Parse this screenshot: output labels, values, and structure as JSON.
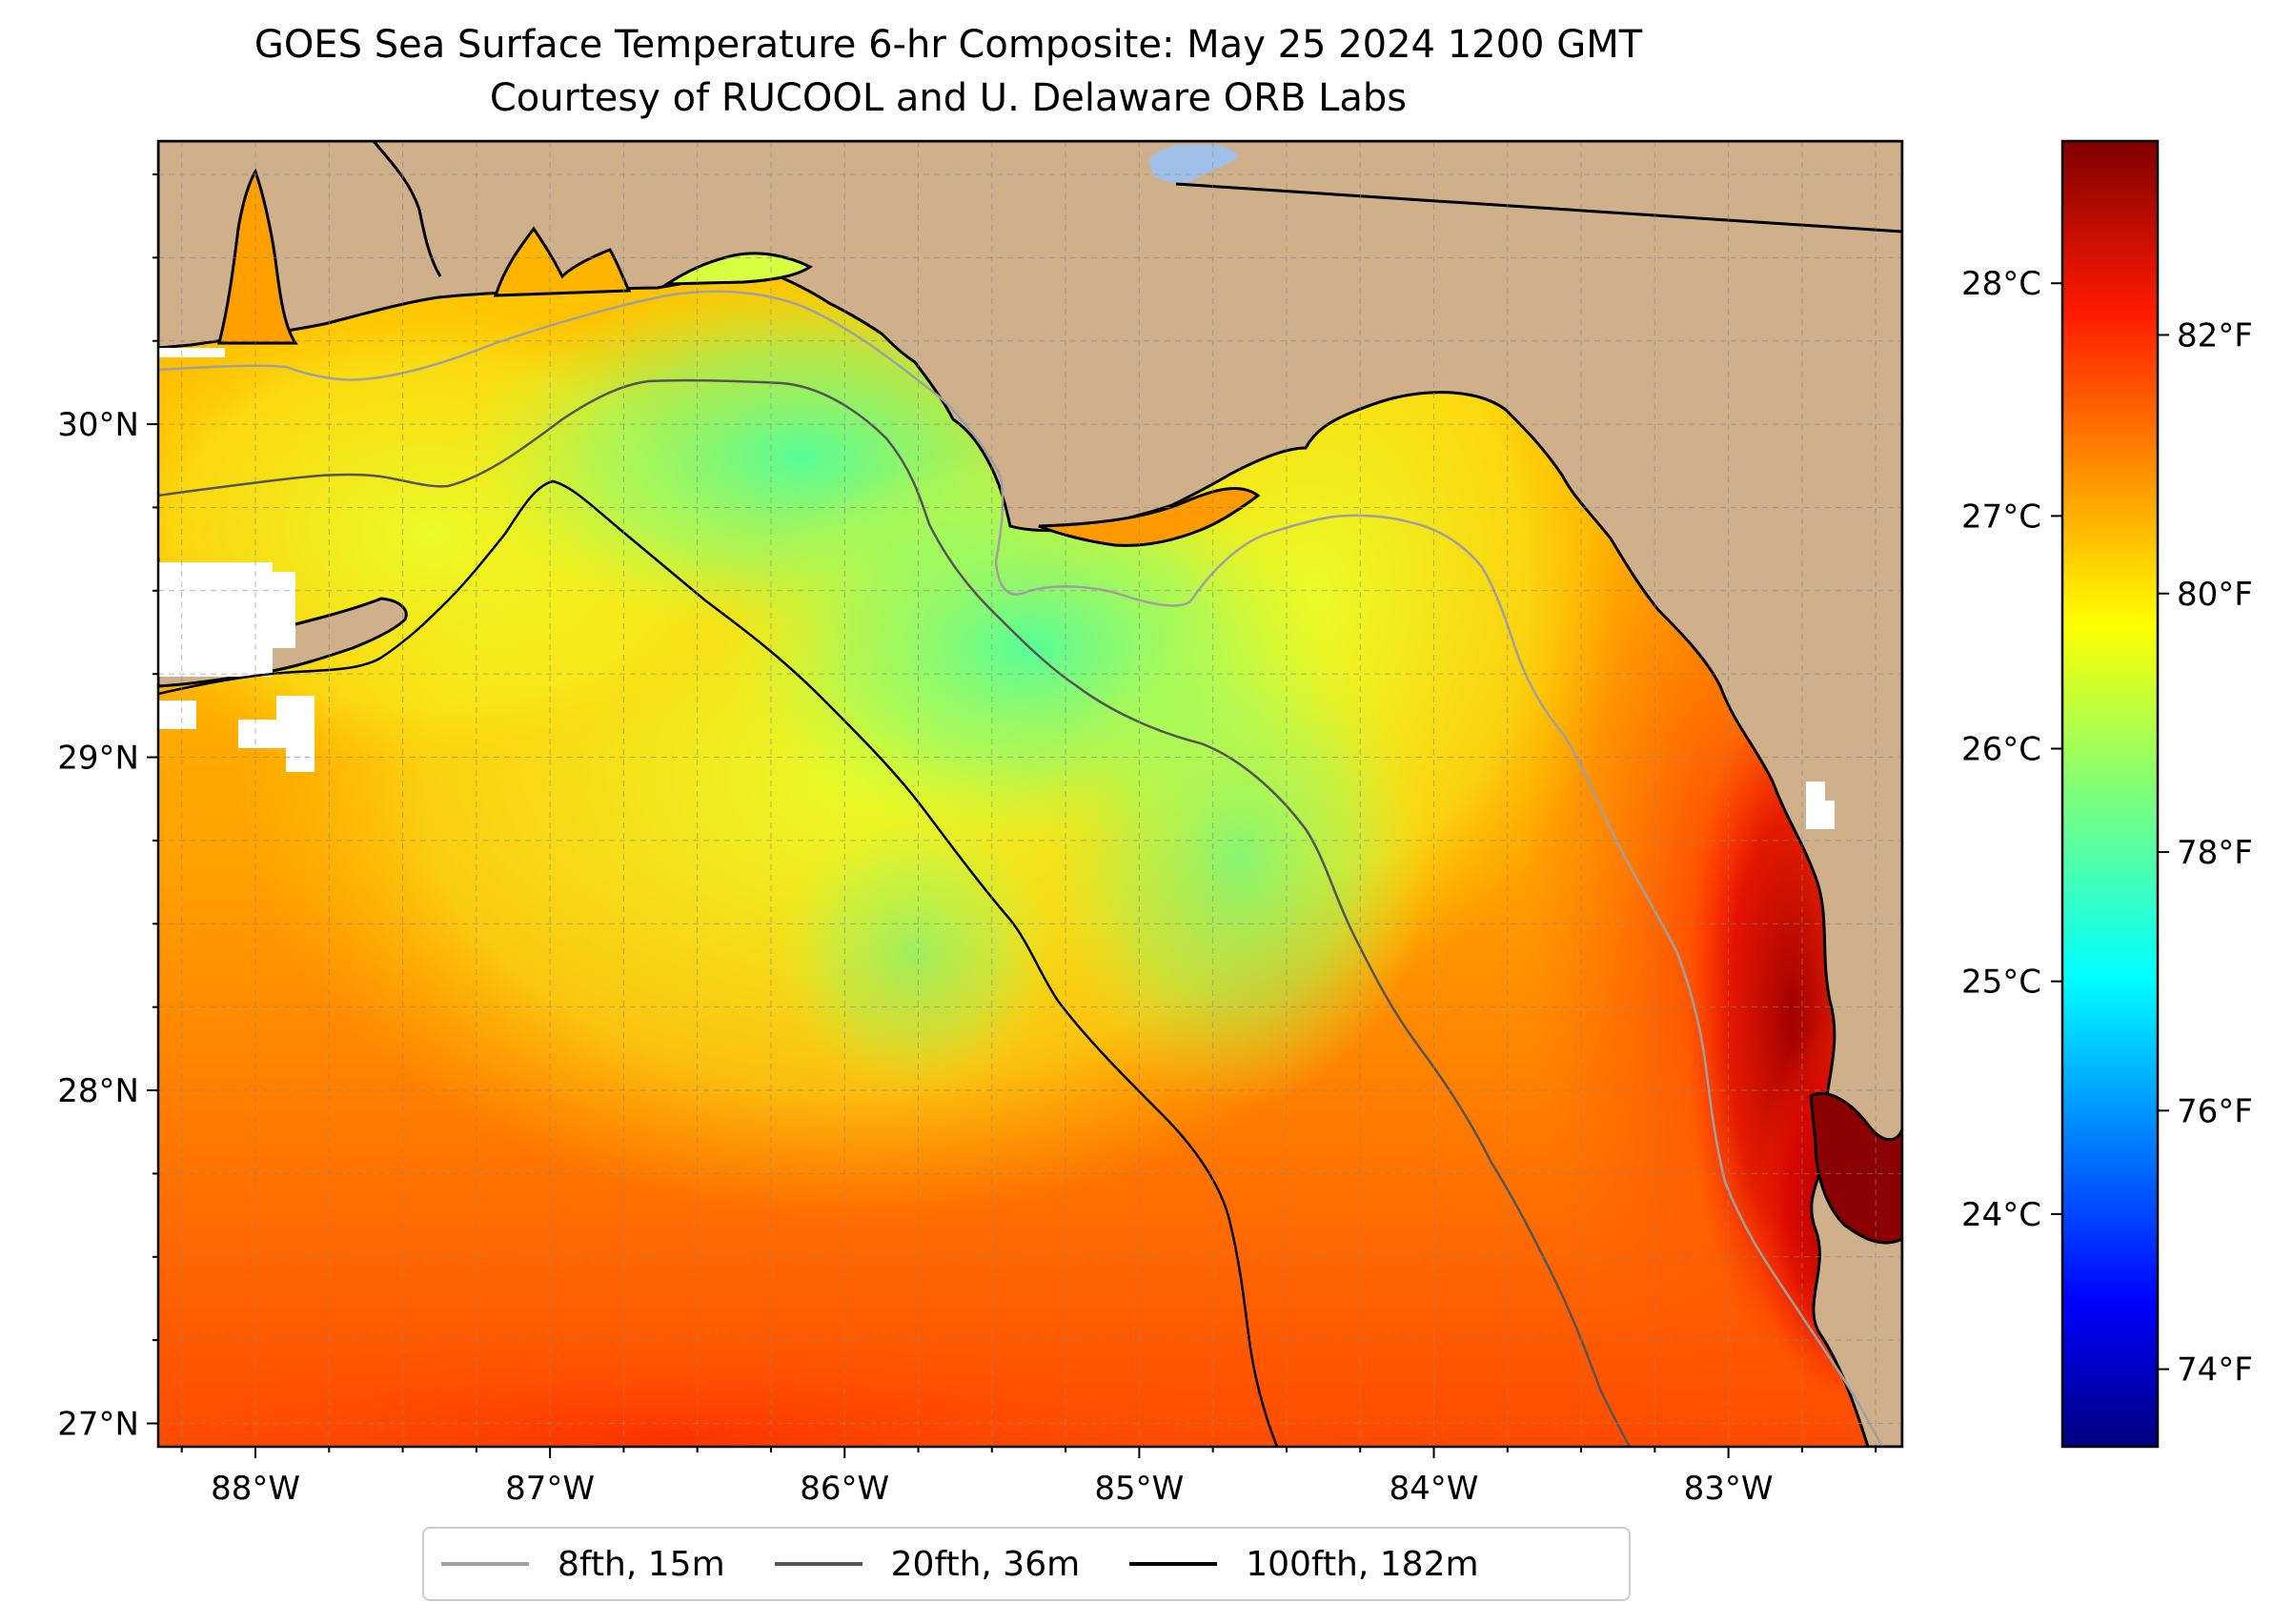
{
  "title": "GOES Sea Surface Temperature 6-hr Composite: May 25 2024 1200 GMT",
  "subtitle": "Courtesy of RUCOOL and U. Delaware ORB Labs",
  "map": {
    "lon_range": [
      -88.33,
      -82.41
    ],
    "lat_range": [
      26.93,
      30.85
    ],
    "land_color": "#cfb08a",
    "lake_color": "#9fbfe8",
    "lon_ticks": [
      {
        "value": -88,
        "label": "88°W"
      },
      {
        "value": -87,
        "label": "87°W"
      },
      {
        "value": -86,
        "label": "86°W"
      },
      {
        "value": -85,
        "label": "85°W"
      },
      {
        "value": -84,
        "label": "84°W"
      },
      {
        "value": -83,
        "label": "83°W"
      }
    ],
    "lat_ticks": [
      {
        "value": 30,
        "label": "30°N"
      },
      {
        "value": 29,
        "label": "29°N"
      },
      {
        "value": 28,
        "label": "28°N"
      },
      {
        "value": 27,
        "label": "27°N"
      }
    ],
    "gridlines": true
  },
  "colorbar": {
    "colormap": "jet",
    "range_f": [
      73.4,
      83.5
    ],
    "fahrenheit_ticks": [
      {
        "value": 74,
        "label": "74°F"
      },
      {
        "value": 76,
        "label": "76°F"
      },
      {
        "value": 78,
        "label": "78°F"
      },
      {
        "value": 80,
        "label": "80°F"
      },
      {
        "value": 82,
        "label": "82°F"
      }
    ],
    "celsius_ticks": [
      {
        "value": 24,
        "label": "24°C"
      },
      {
        "value": 25,
        "label": "25°C"
      },
      {
        "value": 26,
        "label": "26°C"
      },
      {
        "value": 27,
        "label": "27°C"
      },
      {
        "value": 28,
        "label": "28°C"
      }
    ]
  },
  "legend": {
    "placement": "bottom-center",
    "items": [
      {
        "label": "8fth, 15m",
        "color": "#a0a0a0"
      },
      {
        "label": "20fth, 36m",
        "color": "#555555"
      },
      {
        "label": "100fth, 182m",
        "color": "#000000"
      }
    ]
  }
}
